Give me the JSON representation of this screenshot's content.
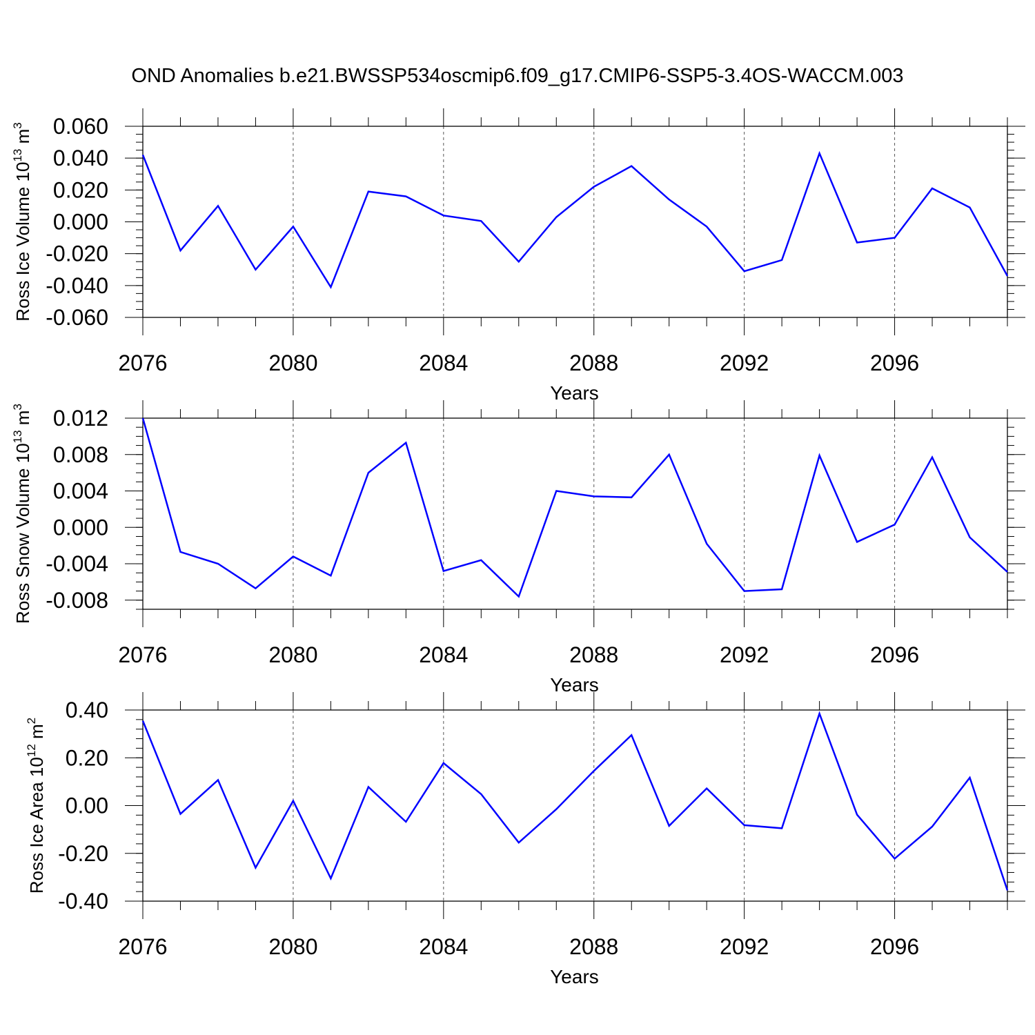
{
  "figure_title": "OND Anomalies b.e21.BWSSP534oscmip6.f09_g17.CMIP6-SSP5-3.4OS-WACCM.003",
  "line_color": "#0000ff",
  "chart_data": [
    {
      "type": "line",
      "title": "",
      "ylabel_main": "Ross Ice Volume 10",
      "ylabel_exp": "13",
      "ylabel_unit": " m",
      "ylabel_unit_exp": "3",
      "xlabel": "Years",
      "x": [
        2076,
        2077,
        2078,
        2079,
        2080,
        2081,
        2082,
        2083,
        2084,
        2085,
        2086,
        2087,
        2088,
        2089,
        2090,
        2091,
        2092,
        2093,
        2094,
        2095,
        2096,
        2097,
        2098,
        2099
      ],
      "series": [
        {
          "name": "Ross Ice Volume",
          "values": [
            0.042,
            -0.018,
            0.01,
            -0.03,
            -0.003,
            -0.041,
            0.019,
            0.016,
            0.004,
            0.0005,
            -0.025,
            0.003,
            0.022,
            0.035,
            0.014,
            -0.003,
            -0.031,
            -0.024,
            0.043,
            -0.013,
            -0.01,
            0.021,
            0.009,
            -0.034
          ]
        }
      ],
      "xlim": [
        2076,
        2099
      ],
      "ylim": [
        -0.06,
        0.06
      ],
      "xticks": [
        2076,
        2080,
        2084,
        2088,
        2092,
        2096
      ],
      "xtick_labels": [
        "2076",
        "2080",
        "2084",
        "2088",
        "2092",
        "2096"
      ],
      "yticks": [
        0.06,
        0.04,
        0.02,
        0.0,
        -0.02,
        -0.04,
        -0.06
      ],
      "ytick_labels": [
        "0.060",
        "0.040",
        "0.020",
        "0.000",
        "-0.020",
        "-0.040",
        "-0.060"
      ],
      "y_minor_step": 0.005
    },
    {
      "type": "line",
      "title": "",
      "ylabel_main": "Ross Snow Volume 10",
      "ylabel_exp": "13",
      "ylabel_unit": " m",
      "ylabel_unit_exp": "3",
      "xlabel": "Years",
      "x": [
        2076,
        2077,
        2078,
        2079,
        2080,
        2081,
        2082,
        2083,
        2084,
        2085,
        2086,
        2087,
        2088,
        2089,
        2090,
        2091,
        2092,
        2093,
        2094,
        2095,
        2096,
        2097,
        2098,
        2099
      ],
      "series": [
        {
          "name": "Ross Snow Volume",
          "values": [
            0.012,
            -0.0027,
            -0.004,
            -0.0067,
            -0.0032,
            -0.0053,
            0.006,
            0.0093,
            -0.0048,
            -0.0036,
            -0.0076,
            0.004,
            0.0034,
            0.0033,
            0.008,
            -0.0018,
            -0.007,
            -0.0068,
            0.0079,
            -0.0016,
            0.0003,
            0.0077,
            -0.0011,
            -0.0049
          ]
        }
      ],
      "xlim": [
        2076,
        2099
      ],
      "ylim": [
        -0.009,
        0.012
      ],
      "xticks": [
        2076,
        2080,
        2084,
        2088,
        2092,
        2096
      ],
      "xtick_labels": [
        "2076",
        "2080",
        "2084",
        "2088",
        "2092",
        "2096"
      ],
      "yticks": [
        0.012,
        0.008,
        0.004,
        0.0,
        -0.004,
        -0.008
      ],
      "ytick_labels": [
        "0.012",
        "0.008",
        "0.004",
        "0.000",
        "-0.004",
        "-0.008"
      ],
      "y_minor_step": 0.001
    },
    {
      "type": "line",
      "title": "",
      "ylabel_main": "Ross Ice Area 10",
      "ylabel_exp": "12",
      "ylabel_unit": " m",
      "ylabel_unit_exp": "2",
      "xlabel": "Years",
      "x": [
        2076,
        2077,
        2078,
        2079,
        2080,
        2081,
        2082,
        2083,
        2084,
        2085,
        2086,
        2087,
        2088,
        2089,
        2090,
        2091,
        2092,
        2093,
        2094,
        2095,
        2096,
        2097,
        2098,
        2099
      ],
      "series": [
        {
          "name": "Ross Ice Area",
          "values": [
            0.355,
            -0.035,
            0.107,
            -0.26,
            0.02,
            -0.305,
            0.078,
            -0.068,
            0.178,
            0.048,
            -0.155,
            -0.015,
            0.145,
            0.295,
            -0.085,
            0.072,
            -0.082,
            -0.095,
            0.385,
            -0.038,
            -0.222,
            -0.088,
            0.117,
            -0.355
          ]
        }
      ],
      "xlim": [
        2076,
        2099
      ],
      "ylim": [
        -0.4,
        0.4
      ],
      "xticks": [
        2076,
        2080,
        2084,
        2088,
        2092,
        2096
      ],
      "xtick_labels": [
        "2076",
        "2080",
        "2084",
        "2088",
        "2092",
        "2096"
      ],
      "yticks": [
        0.4,
        0.2,
        0.0,
        -0.2,
        -0.4
      ],
      "ytick_labels": [
        "0.40",
        "0.20",
        "0.00",
        "-0.20",
        "-0.40"
      ],
      "y_minor_step": 0.04
    }
  ]
}
